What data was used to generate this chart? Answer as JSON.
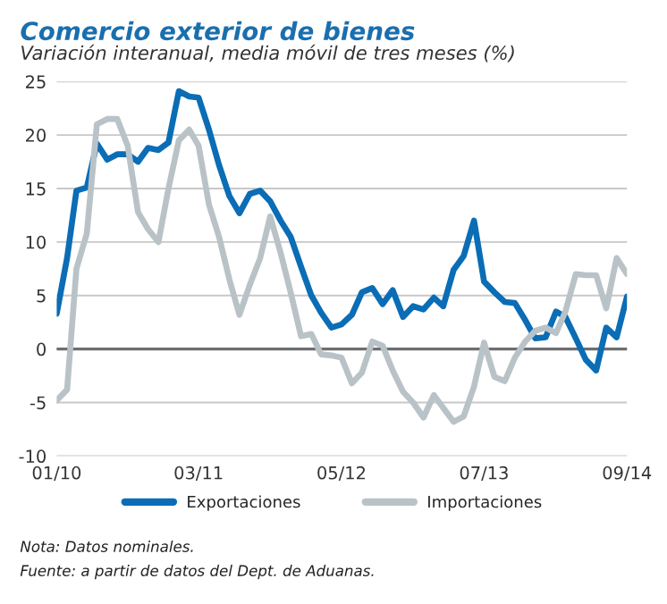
{
  "chart_data": {
    "type": "line",
    "title": "Comercio exterior de bienes",
    "subtitle": "Variación interanual, media móvil de tres meses (%)",
    "x": [
      "2010-01",
      "2010-02",
      "2010-03",
      "2010-04",
      "2010-05",
      "2010-06",
      "2010-07",
      "2010-08",
      "2010-09",
      "2010-10",
      "2010-11",
      "2010-12",
      "2011-01",
      "2011-02",
      "2011-03",
      "2011-04",
      "2011-05",
      "2011-06",
      "2011-07",
      "2011-08",
      "2011-09",
      "2011-10",
      "2011-11",
      "2011-12",
      "2012-01",
      "2012-02",
      "2012-03",
      "2012-04",
      "2012-05",
      "2012-06",
      "2012-07",
      "2012-08",
      "2012-09",
      "2012-10",
      "2012-11",
      "2012-12",
      "2013-01",
      "2013-02",
      "2013-03",
      "2013-04",
      "2013-05",
      "2013-06",
      "2013-07",
      "2013-08",
      "2013-09",
      "2013-10",
      "2013-11",
      "2013-12",
      "2014-01",
      "2014-02",
      "2014-03",
      "2014-04",
      "2014-05",
      "2014-06",
      "2014-07",
      "2014-08",
      "2014-09"
    ],
    "series": [
      {
        "name": "Exportaciones",
        "color": "#0a6db5",
        "values": [
          3.3,
          8.5,
          14.8,
          15.1,
          19.2,
          17.7,
          18.2,
          18.2,
          17.5,
          18.8,
          18.6,
          19.3,
          24.1,
          23.6,
          23.5,
          20.5,
          17.2,
          14.3,
          12.7,
          14.5,
          14.8,
          13.8,
          12,
          10.5,
          7.7,
          5,
          3.4,
          2,
          2.3,
          3.2,
          5.3,
          5.7,
          4.2,
          5.5,
          3,
          4,
          3.7,
          4.8,
          4,
          7.4,
          8.7,
          12,
          6.3,
          5.3,
          4.4,
          4.3,
          2.7,
          1,
          1.1,
          3.5,
          3,
          1,
          -1,
          -2,
          2,
          1.1,
          4.9
        ]
      },
      {
        "name": "Importaciones",
        "color": "#b9c3c7",
        "values": [
          -4.8,
          -3.8,
          7.5,
          10.8,
          21,
          21.5,
          21.5,
          19,
          12.8,
          11.2,
          10,
          15,
          19.5,
          20.5,
          19,
          13.5,
          10.5,
          6.5,
          3.2,
          6,
          8.5,
          12.4,
          9,
          5.3,
          1.2,
          1.4,
          -0.5,
          -0.6,
          -0.8,
          -3.2,
          -2.2,
          0.7,
          0.3,
          -2,
          -4,
          -5,
          -6.4,
          -4.3,
          -5.5,
          -6.8,
          -6.3,
          -3.5,
          0.6,
          -2.6,
          -3,
          -0.8,
          0.7,
          1.7,
          2,
          1.5,
          3.5,
          7,
          6.9,
          6.9,
          3.8,
          8.5,
          7
        ]
      }
    ],
    "xlim": [
      "2010-01",
      "2014-09"
    ],
    "xticks": [
      {
        "value": "2010-01",
        "label": "01/10"
      },
      {
        "value": "2011-03",
        "label": "03/11"
      },
      {
        "value": "2012-05",
        "label": "05/12"
      },
      {
        "value": "2013-07",
        "label": "07/13"
      },
      {
        "value": "2014-09",
        "label": "09/14"
      }
    ],
    "ylim": [
      -10,
      25
    ],
    "yticks": [
      -10,
      -5,
      0,
      5,
      10,
      15,
      20,
      25
    ],
    "ref_lines": [
      {
        "axis": "y",
        "value": 0,
        "color": "#6d6e70"
      }
    ],
    "grid": "y",
    "legend": "bottom",
    "line_style": "solid",
    "marker": "none",
    "annotations": [
      "Nota: Datos nominales.",
      "Fuente: a partir de datos del Dept. de Aduanas."
    ]
  }
}
